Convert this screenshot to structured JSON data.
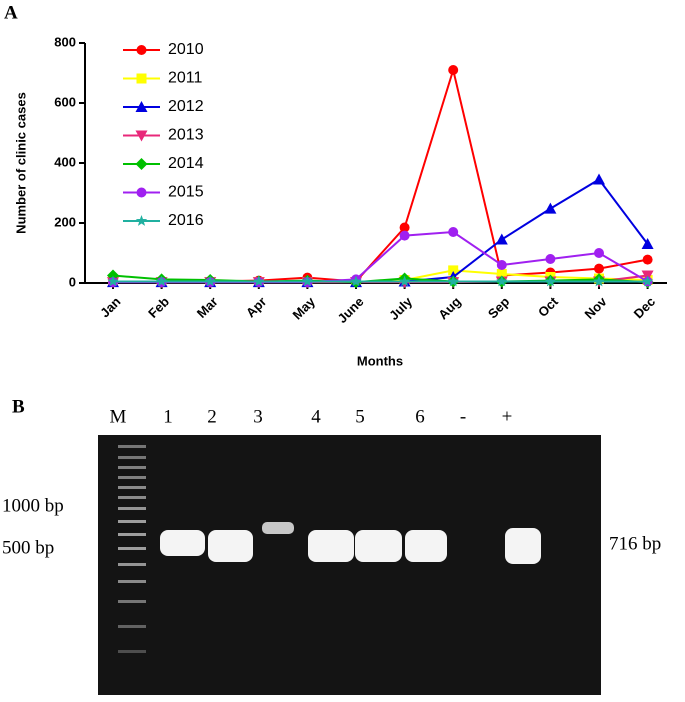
{
  "panels": [
    "A",
    "B"
  ],
  "chart_data": {
    "type": "line",
    "ylabel": "Number of clinic cases",
    "xlabel": "Months",
    "categories": [
      "Jan",
      "Feb",
      "Mar",
      "Apr",
      "May",
      "June",
      "July",
      "Aug",
      "Sep",
      "Oct",
      "Nov",
      "Dec"
    ],
    "ylim": [
      0,
      800
    ],
    "yticks": [
      0,
      200,
      400,
      600,
      800
    ],
    "legend": "upper-left",
    "series": [
      {
        "name": "2010",
        "color": "#ff0000",
        "marker": "circle",
        "values": [
          5,
          5,
          5,
          8,
          18,
          5,
          185,
          710,
          25,
          35,
          48,
          78
        ]
      },
      {
        "name": "2011",
        "color": "#ffff00",
        "marker": "square",
        "values": [
          5,
          3,
          3,
          3,
          3,
          3,
          10,
          42,
          30,
          20,
          15,
          10
        ]
      },
      {
        "name": "2012",
        "color": "#0000e0",
        "marker": "triangle-up",
        "values": [
          3,
          3,
          3,
          3,
          3,
          3,
          5,
          20,
          145,
          248,
          345,
          130
        ]
      },
      {
        "name": "2013",
        "color": "#e8287a",
        "marker": "triangle-down",
        "values": [
          3,
          3,
          3,
          3,
          3,
          3,
          3,
          3,
          5,
          5,
          5,
          25
        ]
      },
      {
        "name": "2014",
        "color": "#00c000",
        "marker": "diamond",
        "values": [
          25,
          12,
          10,
          5,
          8,
          3,
          15,
          5,
          5,
          8,
          12,
          3
        ]
      },
      {
        "name": "2015",
        "color": "#a020f0",
        "marker": "circle",
        "values": [
          3,
          3,
          3,
          3,
          3,
          12,
          158,
          170,
          60,
          80,
          100,
          5
        ]
      },
      {
        "name": "2016",
        "color": "#20b0a0",
        "marker": "star",
        "values": [
          5,
          5,
          5,
          5,
          5,
          5,
          5,
          5,
          5,
          5,
          5,
          5
        ]
      }
    ]
  },
  "gel": {
    "lanes": [
      "M",
      "1",
      "2",
      "3",
      "4",
      "5",
      "6",
      "-",
      "+"
    ],
    "ladder_labels": [
      "1000 bp",
      "500 bp"
    ],
    "band_label": "716 bp"
  }
}
